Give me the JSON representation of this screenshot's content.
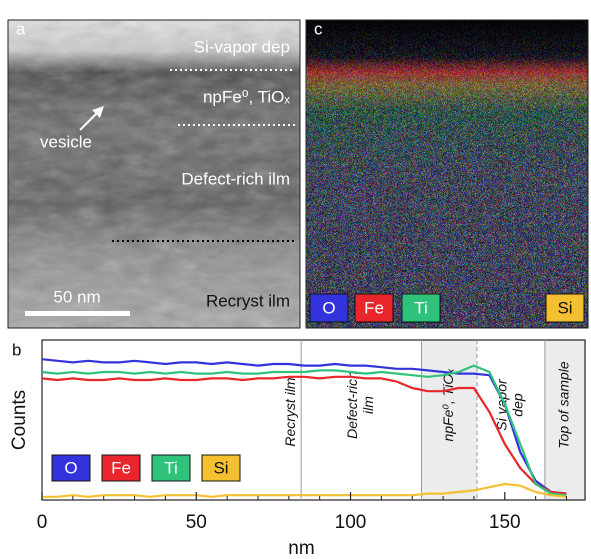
{
  "panel_a": {
    "label": "a",
    "annotations": [
      "Si-vapor dep",
      "npFe⁰, TiOₓ",
      "vesicle",
      "Defect-rich ilm",
      "Recryst ilm"
    ],
    "scale_bar": "50 nm"
  },
  "panel_c": {
    "label": "c"
  },
  "chart_data": {
    "type": "line",
    "panel_label": "b",
    "x_label": "nm",
    "y_label": "Counts",
    "xlim": [
      0,
      176
    ],
    "xticks": [
      0,
      50,
      100,
      150
    ],
    "xminor_ticks": [
      10,
      20,
      30,
      40,
      60,
      70,
      80,
      90,
      110,
      120,
      130,
      140,
      160,
      170
    ],
    "ylim": [
      0,
      100
    ],
    "x": [
      0,
      5,
      10,
      15,
      20,
      25,
      30,
      35,
      40,
      45,
      50,
      55,
      60,
      65,
      70,
      75,
      80,
      85,
      90,
      95,
      100,
      105,
      110,
      115,
      120,
      125,
      130,
      135,
      140,
      145,
      150,
      155,
      160,
      165,
      170
    ],
    "series": [
      {
        "name": "O",
        "color": "#3333dd",
        "values": [
          88,
          87,
          86,
          87,
          86,
          86,
          87,
          86,
          85,
          86,
          86,
          85,
          86,
          85,
          84,
          85,
          85,
          84,
          84,
          85,
          84,
          84,
          83,
          82,
          82,
          81,
          80,
          79,
          79,
          78,
          60,
          30,
          12,
          5,
          4
        ]
      },
      {
        "name": "Fe",
        "color": "#e8262b",
        "values": [
          76,
          75,
          76,
          75,
          75,
          76,
          75,
          75,
          76,
          75,
          75,
          76,
          76,
          75,
          76,
          76,
          77,
          77,
          76,
          77,
          77,
          76,
          76,
          74,
          70,
          68,
          68,
          70,
          70,
          55,
          35,
          20,
          10,
          5,
          4
        ]
      },
      {
        "name": "Ti",
        "color": "#2ec27a",
        "values": [
          80,
          79,
          80,
          79,
          80,
          80,
          79,
          80,
          79,
          80,
          79,
          79,
          80,
          79,
          79,
          80,
          80,
          80,
          81,
          81,
          80,
          79,
          80,
          79,
          78,
          77,
          78,
          80,
          84,
          80,
          60,
          35,
          10,
          4,
          3
        ]
      },
      {
        "name": "Si",
        "color": "#f5c030",
        "values": [
          2,
          2,
          3,
          2,
          3,
          3,
          3,
          2,
          3,
          3,
          3,
          2,
          3,
          3,
          3,
          3,
          3,
          3,
          3,
          3,
          3,
          3,
          3,
          3,
          3,
          4,
          4,
          5,
          6,
          8,
          10,
          9,
          5,
          3,
          2
        ]
      }
    ],
    "regions": [
      {
        "lines": [
          "Recryst ilm"
        ],
        "start": 0
      },
      {
        "lines": [
          "Defect-rich",
          "ilm"
        ],
        "start": 84
      },
      {
        "lines": [
          "npFe⁰, TiOₓ"
        ],
        "start": 123,
        "shaded": true
      },
      {
        "lines": [
          "Si vapor",
          "dep"
        ],
        "start": 141,
        "dashed": true
      },
      {
        "lines": [
          "Top of sample"
        ],
        "start": 163,
        "shaded": true
      }
    ]
  }
}
